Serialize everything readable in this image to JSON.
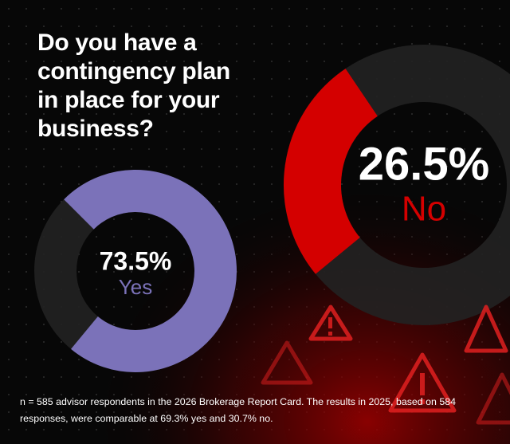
{
  "title": "Do you have a contingency plan in place for your business?",
  "note": "n = 585 advisor respondents in the 2026 Brokerage Report Card. The results in 2025, based on 584 responses, were comparable at 69.3% yes and 30.7% no.",
  "chart_data": [
    {
      "type": "donut",
      "categories": [
        "Yes"
      ],
      "values": [
        73.5
      ],
      "value_labels": [
        "73.5%"
      ],
      "color": "#7b72b9",
      "direction": "clockwise"
    },
    {
      "type": "donut",
      "categories": [
        "No"
      ],
      "values": [
        26.5
      ],
      "value_labels": [
        "26.5%"
      ],
      "color": "#d40000",
      "direction": "counterclockwise"
    }
  ]
}
